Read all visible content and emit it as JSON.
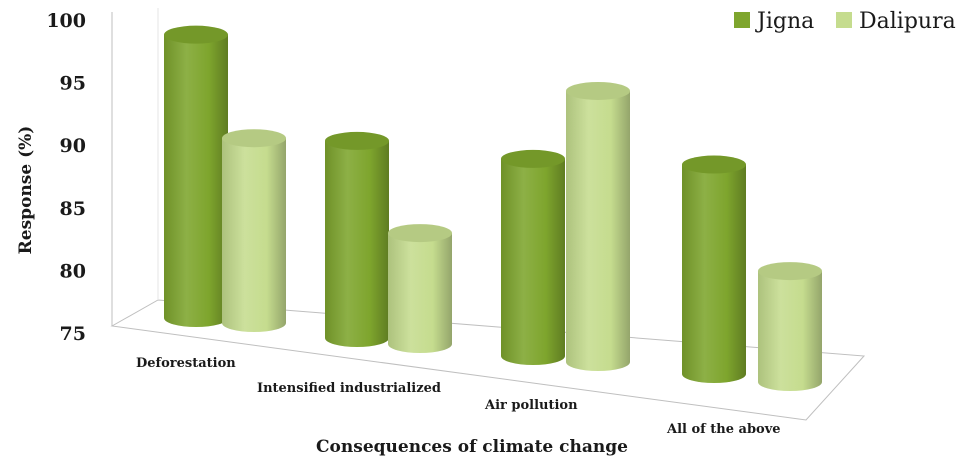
{
  "chart_data": {
    "type": "bar",
    "style": "3d-cylinder",
    "categories": [
      "Deforestation",
      "Intensified industrialized",
      "Air pollution",
      "All of the above"
    ],
    "series": [
      {
        "name": "Jigna",
        "color": "#7ea52d",
        "values": [
          98,
          91,
          91,
          92
        ]
      },
      {
        "name": "Dalipura",
        "color": "#c5dc8e",
        "values": [
          90,
          84,
          97,
          84
        ]
      }
    ],
    "ylim": [
      75,
      100
    ],
    "yticks": [
      75,
      80,
      85,
      90,
      95,
      100
    ],
    "ylabel": "Response (%)",
    "xlabel": "Consequences of climate change",
    "legend": "top-right",
    "grid": false
  }
}
